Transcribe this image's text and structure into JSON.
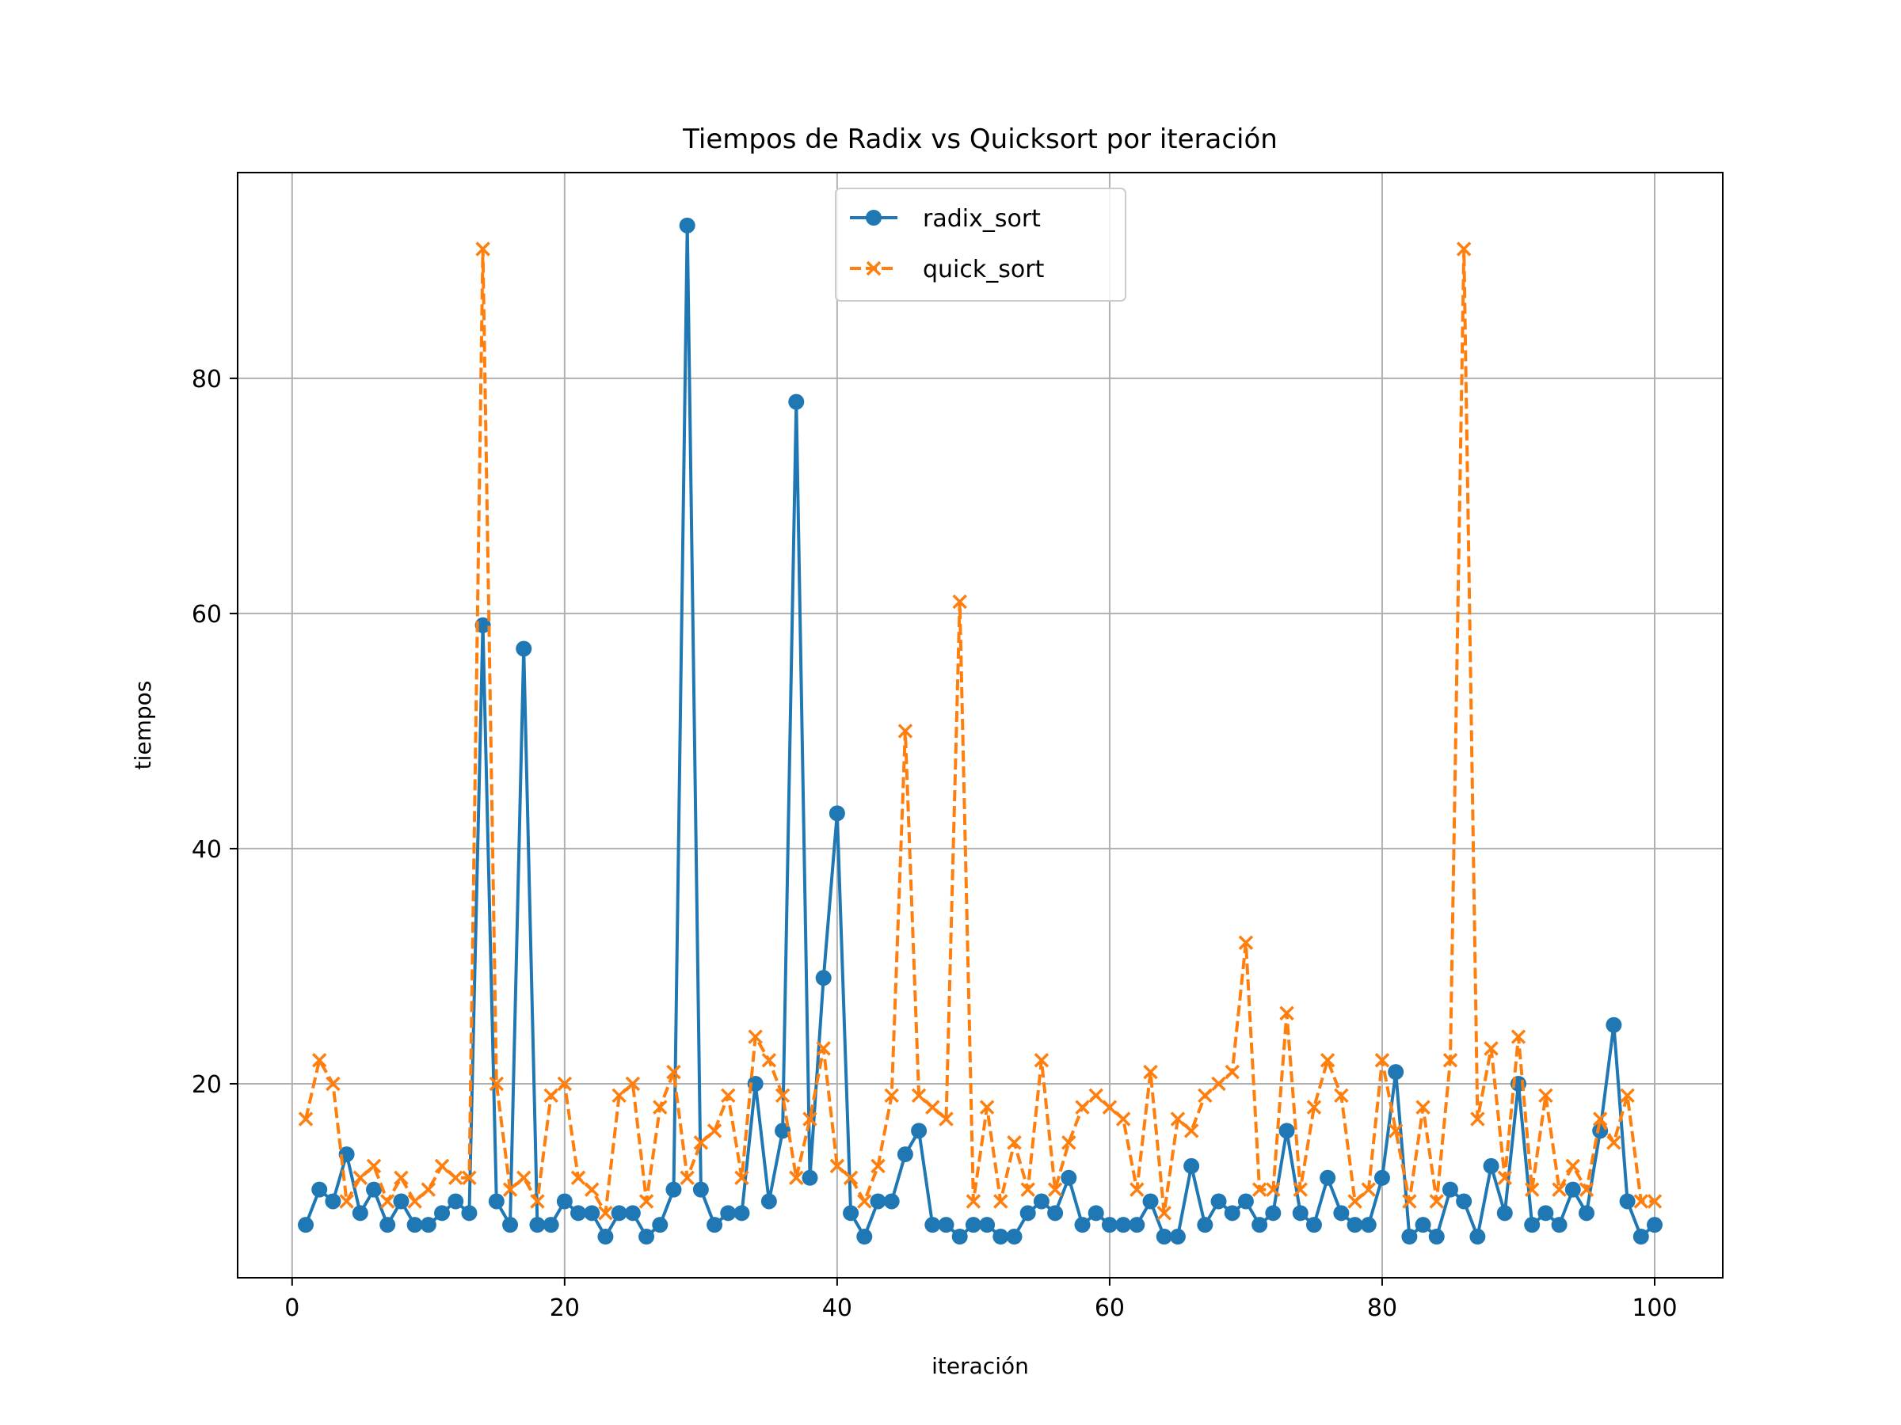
{
  "chart_data": {
    "type": "line",
    "title": "Tiempos de Radix vs Quicksort por iteración",
    "xlabel": "iteración",
    "ylabel": "tiempos",
    "xlim": [
      -4,
      105
    ],
    "ylim": [
      3.5,
      97.5
    ],
    "xticks": [
      0,
      20,
      40,
      60,
      80,
      100
    ],
    "yticks": [
      20,
      40,
      60,
      80
    ],
    "grid": true,
    "legend_position": "upper center",
    "x": [
      1,
      2,
      3,
      4,
      5,
      6,
      7,
      8,
      9,
      10,
      11,
      12,
      13,
      14,
      15,
      16,
      17,
      18,
      19,
      20,
      21,
      22,
      23,
      24,
      25,
      26,
      27,
      28,
      29,
      30,
      31,
      32,
      33,
      34,
      35,
      36,
      37,
      38,
      39,
      40,
      41,
      42,
      43,
      44,
      45,
      46,
      47,
      48,
      49,
      50,
      51,
      52,
      53,
      54,
      55,
      56,
      57,
      58,
      59,
      60,
      61,
      62,
      63,
      64,
      65,
      66,
      67,
      68,
      69,
      70,
      71,
      72,
      73,
      74,
      75,
      76,
      77,
      78,
      79,
      80,
      81,
      82,
      83,
      84,
      85,
      86,
      87,
      88,
      89,
      90,
      91,
      92,
      93,
      94,
      95,
      96,
      97,
      98,
      99,
      100
    ],
    "series": [
      {
        "name": "radix_sort",
        "color": "#1f77b4",
        "marker": "circle",
        "linestyle": "solid",
        "values": [
          8,
          11,
          10,
          14,
          9,
          11,
          8,
          10,
          8,
          8,
          9,
          10,
          9,
          59,
          10,
          8,
          57,
          8,
          8,
          10,
          9,
          9,
          7,
          9,
          9,
          7,
          8,
          11,
          93,
          11,
          8,
          9,
          9,
          20,
          10,
          16,
          78,
          12,
          29,
          43,
          9,
          7,
          10,
          10,
          14,
          16,
          8,
          8,
          7,
          8,
          8,
          7,
          7,
          9,
          10,
          9,
          12,
          8,
          9,
          8,
          8,
          8,
          10,
          7,
          7,
          13,
          8,
          10,
          9,
          10,
          8,
          9,
          16,
          9,
          8,
          12,
          9,
          8,
          8,
          12,
          21,
          7,
          8,
          7,
          11,
          10,
          7,
          13,
          9,
          20,
          8,
          9,
          8,
          11,
          9,
          16,
          25,
          10,
          7,
          8
        ]
      },
      {
        "name": "quick_sort",
        "color": "#ff7f0e",
        "marker": "x",
        "linestyle": "dashed",
        "values": [
          17,
          22,
          20,
          10,
          12,
          13,
          10,
          12,
          10,
          11,
          13,
          12,
          12,
          91,
          20,
          11,
          12,
          10,
          19,
          20,
          12,
          11,
          9,
          19,
          20,
          10,
          18,
          21,
          12,
          15,
          16,
          19,
          12,
          24,
          22,
          19,
          12,
          17,
          23,
          13,
          12,
          10,
          13,
          19,
          50,
          19,
          18,
          17,
          61,
          10,
          18,
          10,
          15,
          11,
          22,
          11,
          15,
          18,
          19,
          18,
          17,
          11,
          21,
          9,
          17,
          16,
          19,
          20,
          21,
          32,
          11,
          11,
          26,
          11,
          18,
          22,
          19,
          10,
          11,
          22,
          16,
          10,
          18,
          10,
          22,
          91,
          17,
          23,
          12,
          24,
          11,
          19,
          11,
          13,
          11,
          17,
          15,
          19,
          10,
          10
        ]
      }
    ]
  }
}
